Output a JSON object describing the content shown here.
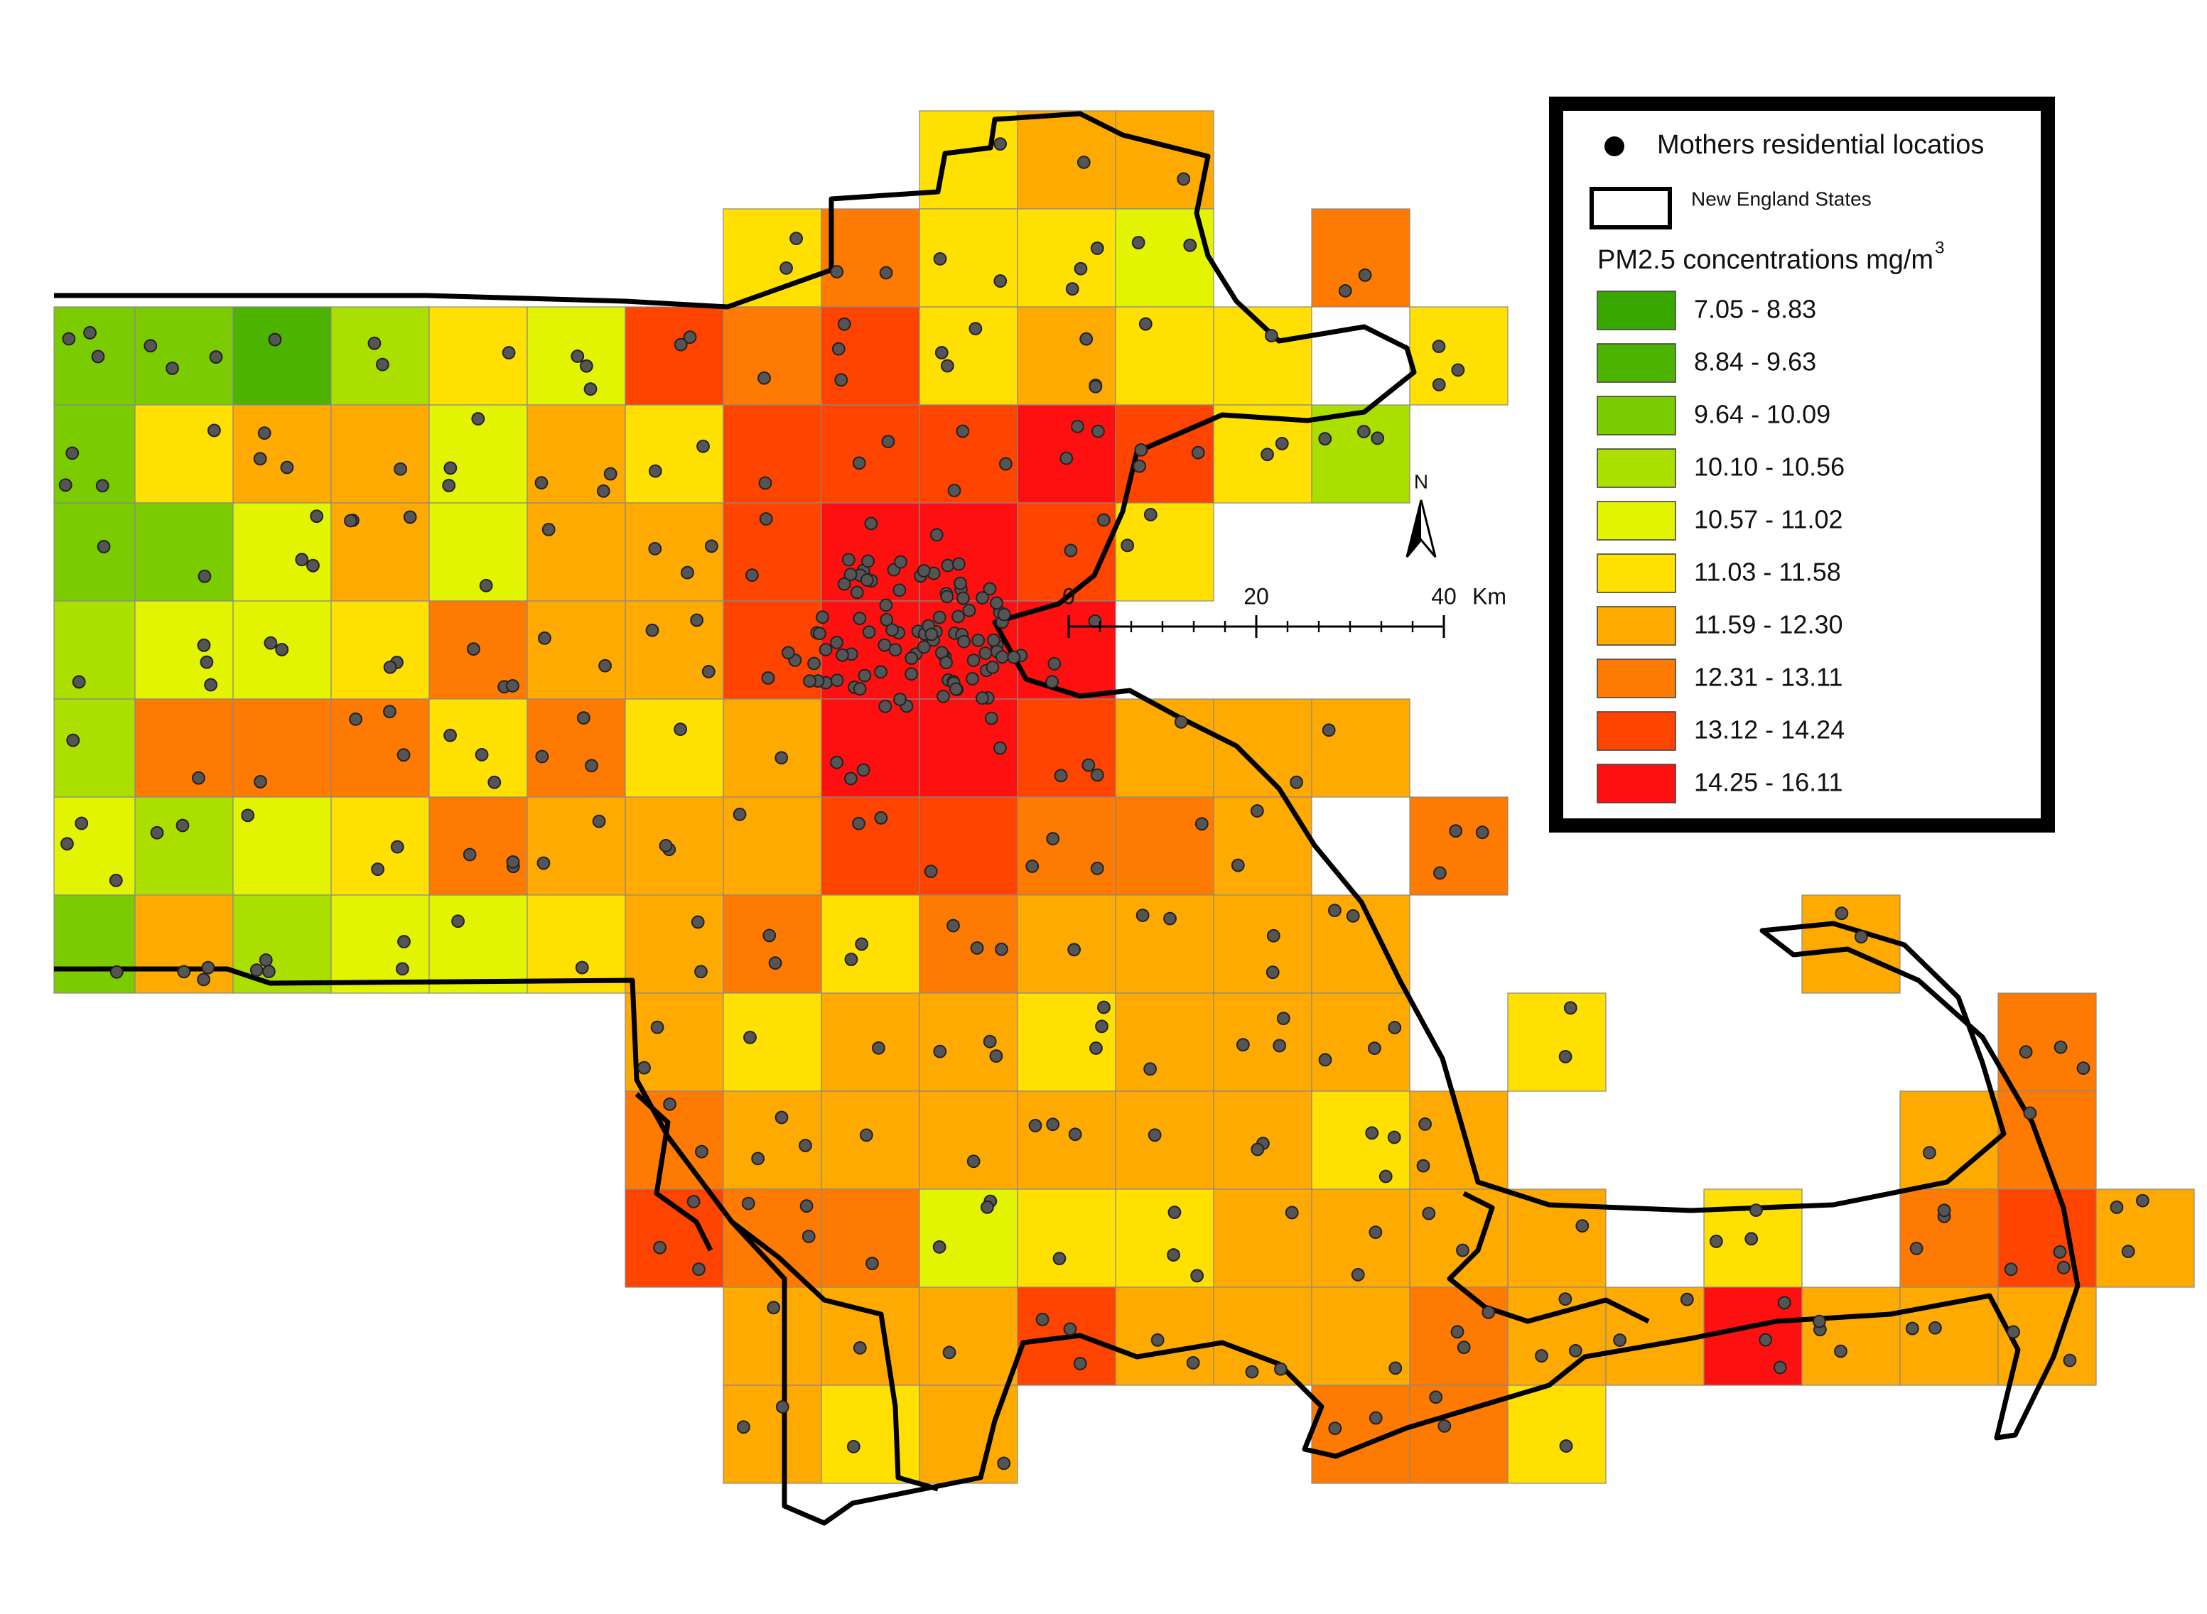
{
  "legend": {
    "points_label": "Mothers residential locatios",
    "boundary_label": "New England States",
    "title": "PM2.5 concentrations mg/m",
    "title_sup": "3",
    "classes": [
      {
        "label": "7.05 - 8.83",
        "color": "#38a800"
      },
      {
        "label": "8.84 - 9.63",
        "color": "#4cb400"
      },
      {
        "label": "9.64 - 10.09",
        "color": "#7acc00"
      },
      {
        "label": "10.10 - 10.56",
        "color": "#aadf00"
      },
      {
        "label": "10.57 - 11.02",
        "color": "#e2f400"
      },
      {
        "label": "11.03 - 11.58",
        "color": "#ffe000"
      },
      {
        "label": "11.59 - 12.30",
        "color": "#ffaa00"
      },
      {
        "label": "12.31 - 13.11",
        "color": "#ff7a00"
      },
      {
        "label": "13.12 - 14.24",
        "color": "#ff4400"
      },
      {
        "label": "14.25 - 16.11",
        "color": "#ff1010"
      }
    ]
  },
  "north_arrow": "N",
  "scale_bar": {
    "ticks": [
      0,
      20,
      40
    ],
    "unit": "Km"
  }
}
